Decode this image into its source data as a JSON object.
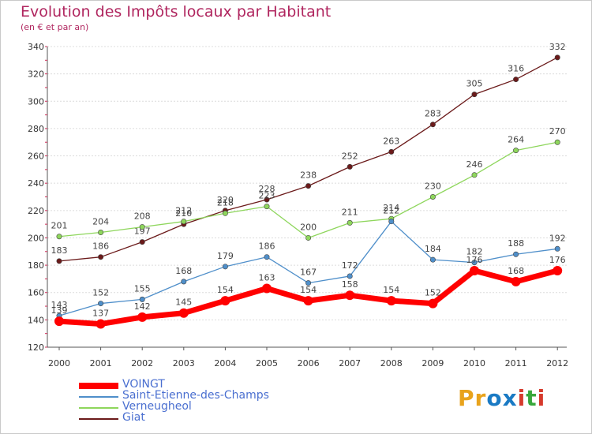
{
  "header": {
    "title": "Evolution des Impôts locaux par Habitant",
    "subtitle": "(en € et par an)"
  },
  "logo": {
    "letters": [
      "P",
      "r",
      "o",
      "x",
      "i",
      "t",
      "i"
    ],
    "colors": [
      "#e8a31c",
      "#e8a31c",
      "#1a7ac4",
      "#1a7ac4",
      "#d63a2c",
      "#38a83c",
      "#d63a2c"
    ]
  },
  "chart_data": {
    "type": "line",
    "title": "Evolution des Impôts locaux par Habitant",
    "subtitle": "(en € et par an)",
    "xlabel": "",
    "ylabel": "",
    "x": [
      "2000",
      "2001",
      "2002",
      "2003",
      "2004",
      "2005",
      "2006",
      "2007",
      "2008",
      "2009",
      "2010",
      "2011",
      "2012"
    ],
    "ylim": [
      120,
      340
    ],
    "yticks": [
      120,
      140,
      160,
      180,
      200,
      220,
      240,
      260,
      280,
      300,
      320,
      340
    ],
    "grid": "horizontal",
    "legend_position": "bottom-left",
    "series": [
      {
        "name": "VOINGT",
        "color": "#ff0000",
        "values": [
          139,
          137,
          142,
          145,
          154,
          163,
          154,
          158,
          154,
          152,
          176,
          168,
          176
        ],
        "labels": [
          "139",
          "137",
          "142",
          "145",
          "154",
          "163",
          "154",
          "158",
          "154",
          "152",
          "176",
          "168",
          "176"
        ]
      },
      {
        "name": "Saint-Etienne-des-Champs",
        "color": "#4f8fca",
        "values": [
          143,
          152,
          155,
          168,
          179,
          186,
          167,
          172,
          212,
          184,
          182,
          188,
          192
        ],
        "labels": [
          "143",
          "152",
          "155",
          "168",
          "179",
          "186",
          "167",
          "172",
          "212",
          "184",
          "182",
          "188",
          "192"
        ]
      },
      {
        "name": "Verneugheol",
        "color": "#8ed65c",
        "values": [
          201,
          204,
          208,
          212,
          218,
          223,
          200,
          211,
          214,
          230,
          246,
          264,
          270
        ],
        "labels": [
          "201",
          "204",
          "208",
          "212",
          "218",
          "223",
          "200",
          "211",
          "214",
          "230",
          "246",
          "264",
          "270"
        ]
      },
      {
        "name": "Giat",
        "color": "#6b1a1a",
        "values": [
          183,
          186,
          197,
          210,
          220,
          228,
          238,
          252,
          263,
          283,
          305,
          316,
          332
        ],
        "labels": [
          "183",
          "186",
          "197",
          "210",
          "220",
          "228",
          "238",
          "252",
          "263",
          "283",
          "305",
          "316",
          "332"
        ]
      }
    ]
  }
}
